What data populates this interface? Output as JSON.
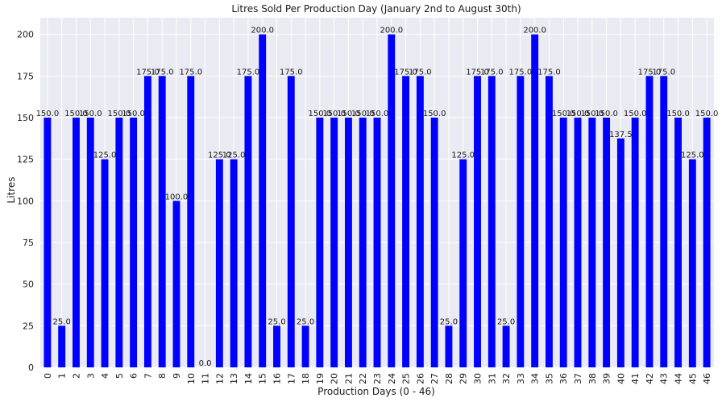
{
  "chart_data": {
    "type": "bar",
    "title": "Litres Sold Per Production Day (January 2nd to August 30th)",
    "xlabel": "Production Days (0 - 46)",
    "ylabel": "Litres",
    "ylim": [
      0,
      210
    ],
    "yticks": [
      0,
      25,
      50,
      75,
      100,
      125,
      150,
      175,
      200
    ],
    "grid": true,
    "bar_color": "#0000ff",
    "background": "#eaeaf2",
    "categories": [
      "0",
      "1",
      "2",
      "3",
      "4",
      "5",
      "6",
      "7",
      "8",
      "9",
      "10",
      "11",
      "12",
      "13",
      "14",
      "15",
      "16",
      "17",
      "18",
      "19",
      "20",
      "21",
      "22",
      "23",
      "24",
      "25",
      "26",
      "27",
      "28",
      "29",
      "30",
      "31",
      "32",
      "33",
      "34",
      "35",
      "36",
      "37",
      "38",
      "39",
      "40",
      "41",
      "42",
      "43",
      "44",
      "45",
      "46"
    ],
    "values": [
      150,
      25,
      150,
      150,
      125,
      150,
      150,
      175,
      175,
      100,
      175,
      0,
      125,
      125,
      175,
      200,
      25,
      175,
      25,
      150,
      150,
      150,
      150,
      150,
      200,
      175,
      175,
      150,
      25,
      125,
      175,
      175,
      25,
      175,
      200,
      175,
      150,
      150,
      150,
      150,
      137.5,
      150,
      175,
      175,
      150,
      125,
      150
    ],
    "data_labels": [
      "150.0",
      "25.0",
      "150.0",
      "150.0",
      "125.0",
      "150.0",
      "150.0",
      "175.0",
      "175.0",
      "100.0",
      "175.0",
      "0.0",
      "125.0",
      "125.0",
      "175.0",
      "200.0",
      "25.0",
      "175.0",
      "25.0",
      "150.0",
      "150.0",
      "150.0",
      "150.0",
      "150.0",
      "200.0",
      "175.0",
      "175.0",
      "150.0",
      "25.0",
      "125.0",
      "175.0",
      "175.0",
      "25.0",
      "175.0",
      "200.0",
      "175.0",
      "150.0",
      "150.0",
      "150.0",
      "150.0",
      "137.5",
      "150.0",
      "175.0",
      "175.0",
      "150.0",
      "125.0",
      "150.0"
    ]
  }
}
